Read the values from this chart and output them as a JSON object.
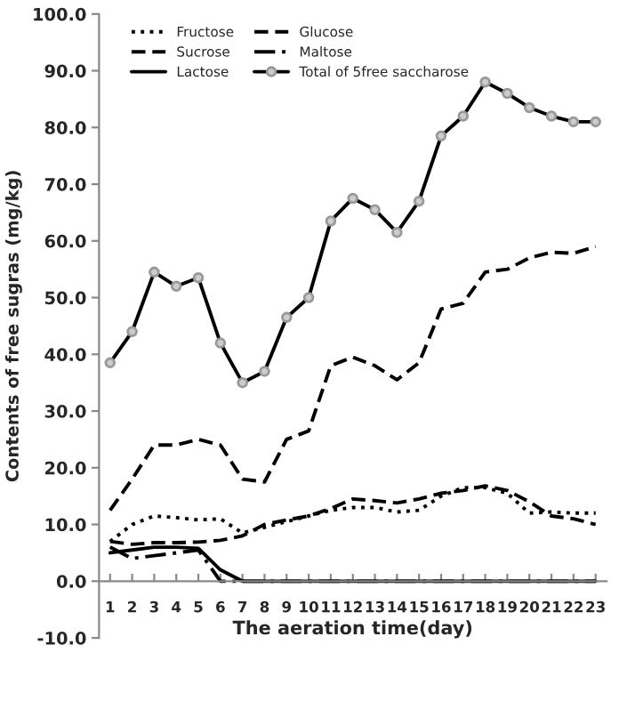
{
  "chart_data": {
    "type": "line",
    "xlabel": "The aeration time(day)",
    "ylabel": "Contents of free sugras (mg/kg)",
    "categories": [
      "1",
      "2",
      "3",
      "4",
      "5",
      "6",
      "7",
      "8",
      "9",
      "10",
      "11",
      "12",
      "13",
      "14",
      "15",
      "16",
      "17",
      "18",
      "19",
      "20",
      "21",
      "22",
      "23"
    ],
    "series": [
      {
        "name": "Fructose",
        "color": "#000000",
        "line_style": "dotted",
        "marker": "none",
        "values": [
          7,
          10,
          11.5,
          11.2,
          10.8,
          11,
          8.5,
          9.5,
          10.5,
          11.5,
          12.5,
          13,
          13,
          12.2,
          12.5,
          15,
          16.5,
          16.5,
          15.5,
          12,
          12.2,
          12,
          12
        ]
      },
      {
        "name": "Glucose",
        "color": "#000000",
        "line_style": "dashed",
        "marker": "none",
        "values": [
          12.5,
          18,
          24,
          24,
          25,
          24,
          18,
          17.5,
          25,
          26.5,
          38,
          39.5,
          38,
          35.5,
          38.5,
          48,
          49,
          54.5,
          55,
          57,
          58,
          57.8,
          59
        ]
      },
      {
        "name": "Sucrose",
        "color": "#000000",
        "line_style": "dashed",
        "marker": "none",
        "values": [
          7,
          6.5,
          6.8,
          6.8,
          6.9,
          7.2,
          8,
          10,
          10.8,
          11.5,
          12.8,
          14.5,
          14.2,
          13.8,
          14.5,
          15.5,
          16,
          16.8,
          16,
          14,
          11.5,
          11,
          10
        ]
      },
      {
        "name": "Maltose",
        "color": "#000000",
        "line_style": "dashdot",
        "marker": "none",
        "values": [
          6,
          4,
          4.5,
          5,
          5.5,
          0,
          0,
          0,
          0,
          0,
          0,
          0,
          0,
          0,
          0,
          0,
          0,
          0,
          0,
          0,
          0,
          0,
          0
        ]
      },
      {
        "name": "Lactose",
        "color": "#000000",
        "line_style": "solid",
        "marker": "none",
        "values": [
          5,
          5.5,
          6,
          6,
          5.8,
          2,
          0,
          0,
          0,
          0,
          0,
          0,
          0,
          0,
          0,
          0,
          0,
          0,
          0,
          0,
          0,
          0,
          0
        ]
      },
      {
        "name": "Total of 5free saccharose",
        "color": "#000000",
        "line_style": "solid",
        "marker": "circle",
        "values": [
          38.5,
          44,
          54.5,
          52,
          53.5,
          42,
          35,
          37,
          46.5,
          50,
          63.5,
          67.5,
          65.5,
          61.5,
          67,
          78.5,
          82,
          88,
          86,
          83.5,
          82,
          81,
          81
        ]
      }
    ],
    "ylim": [
      -10,
      100
    ],
    "yticks": [
      {
        "value": -10,
        "label": "-10.0"
      },
      {
        "value": 0,
        "label": "0.0"
      },
      {
        "value": 10,
        "label": "10.0"
      },
      {
        "value": 20,
        "label": "20.0"
      },
      {
        "value": 30,
        "label": "30.0"
      },
      {
        "value": 40,
        "label": "40.0"
      },
      {
        "value": 50,
        "label": "50.0"
      },
      {
        "value": 60,
        "label": "60.0"
      },
      {
        "value": 70,
        "label": "70.0"
      },
      {
        "value": 80,
        "label": "80.0"
      },
      {
        "value": 90,
        "label": "90.0"
      },
      {
        "value": 100,
        "label": "100.0"
      }
    ],
    "grid": false,
    "legend": "top left"
  }
}
